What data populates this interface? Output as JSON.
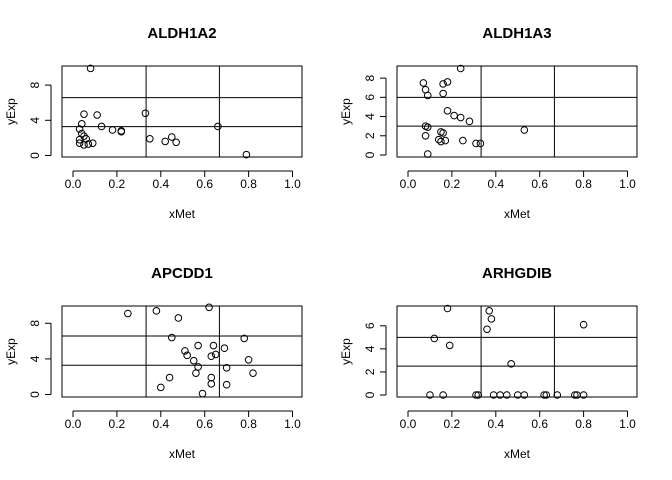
{
  "chart_data": [
    {
      "type": "scatter",
      "title": "ALDH1A2",
      "xlabel": "xMet",
      "ylabel": "yExp",
      "xlim": [
        0,
        1
      ],
      "ylim": [
        0,
        10
      ],
      "x_ticks": [
        "0.0",
        "0.2",
        "0.4",
        "0.6",
        "0.8",
        "1.0"
      ],
      "y_ticks": [
        "0",
        "4",
        "8"
      ],
      "vlines": [
        0.333,
        0.667
      ],
      "hlines": [
        3.28,
        6.57
      ],
      "points": [
        {
          "x": 0.08,
          "y": 9.9
        },
        {
          "x": 0.05,
          "y": 4.7
        },
        {
          "x": 0.11,
          "y": 4.6
        },
        {
          "x": 0.04,
          "y": 3.6
        },
        {
          "x": 0.13,
          "y": 3.3
        },
        {
          "x": 0.03,
          "y": 3.0
        },
        {
          "x": 0.04,
          "y": 2.5
        },
        {
          "x": 0.05,
          "y": 2.2
        },
        {
          "x": 0.03,
          "y": 1.8
        },
        {
          "x": 0.06,
          "y": 1.9
        },
        {
          "x": 0.03,
          "y": 1.4
        },
        {
          "x": 0.05,
          "y": 1.2
        },
        {
          "x": 0.07,
          "y": 1.3
        },
        {
          "x": 0.09,
          "y": 1.4
        },
        {
          "x": 0.18,
          "y": 2.9
        },
        {
          "x": 0.22,
          "y": 2.8
        },
        {
          "x": 0.22,
          "y": 2.7
        },
        {
          "x": 0.33,
          "y": 4.8
        },
        {
          "x": 0.35,
          "y": 1.9
        },
        {
          "x": 0.42,
          "y": 1.6
        },
        {
          "x": 0.45,
          "y": 2.1
        },
        {
          "x": 0.47,
          "y": 1.5
        },
        {
          "x": 0.66,
          "y": 3.3
        },
        {
          "x": 0.79,
          "y": 0.1
        }
      ]
    },
    {
      "type": "scatter",
      "title": "ALDH1A3",
      "xlabel": "xMet",
      "ylabel": "yExp",
      "xlim": [
        0,
        1
      ],
      "ylim": [
        0,
        9
      ],
      "x_ticks": [
        "0.0",
        "0.2",
        "0.4",
        "0.6",
        "0.8",
        "1.0"
      ],
      "y_ticks": [
        "0",
        "2",
        "4",
        "6",
        "8"
      ],
      "vlines": [
        0.333,
        0.667
      ],
      "hlines": [
        3.0,
        6.0
      ],
      "points": [
        {
          "x": 0.24,
          "y": 9.0
        },
        {
          "x": 0.07,
          "y": 7.5
        },
        {
          "x": 0.18,
          "y": 7.6
        },
        {
          "x": 0.16,
          "y": 7.4
        },
        {
          "x": 0.08,
          "y": 6.8
        },
        {
          "x": 0.09,
          "y": 6.2
        },
        {
          "x": 0.16,
          "y": 6.4
        },
        {
          "x": 0.18,
          "y": 4.6
        },
        {
          "x": 0.21,
          "y": 4.1
        },
        {
          "x": 0.24,
          "y": 3.9
        },
        {
          "x": 0.28,
          "y": 3.5
        },
        {
          "x": 0.08,
          "y": 3.0
        },
        {
          "x": 0.09,
          "y": 2.9
        },
        {
          "x": 0.15,
          "y": 2.4
        },
        {
          "x": 0.16,
          "y": 2.3
        },
        {
          "x": 0.08,
          "y": 2.0
        },
        {
          "x": 0.14,
          "y": 1.6
        },
        {
          "x": 0.17,
          "y": 1.5
        },
        {
          "x": 0.15,
          "y": 1.4
        },
        {
          "x": 0.25,
          "y": 1.5
        },
        {
          "x": 0.31,
          "y": 1.2
        },
        {
          "x": 0.33,
          "y": 1.2
        },
        {
          "x": 0.53,
          "y": 2.6
        },
        {
          "x": 0.09,
          "y": 0.1
        }
      ]
    },
    {
      "type": "scatter",
      "title": "APCDD1",
      "xlabel": "xMet",
      "ylabel": "yExp",
      "xlim": [
        0,
        1
      ],
      "ylim": [
        0,
        10
      ],
      "x_ticks": [
        "0.0",
        "0.2",
        "0.4",
        "0.6",
        "0.8",
        "1.0"
      ],
      "y_ticks": [
        "0",
        "4",
        "8"
      ],
      "vlines": [
        0.333,
        0.667
      ],
      "hlines": [
        3.28,
        6.57
      ],
      "points": [
        {
          "x": 0.25,
          "y": 9.1
        },
        {
          "x": 0.38,
          "y": 9.4
        },
        {
          "x": 0.62,
          "y": 9.8
        },
        {
          "x": 0.48,
          "y": 8.6
        },
        {
          "x": 0.45,
          "y": 6.4
        },
        {
          "x": 0.78,
          "y": 6.3
        },
        {
          "x": 0.69,
          "y": 5.2
        },
        {
          "x": 0.57,
          "y": 5.5
        },
        {
          "x": 0.64,
          "y": 5.5
        },
        {
          "x": 0.51,
          "y": 4.9
        },
        {
          "x": 0.52,
          "y": 4.4
        },
        {
          "x": 0.63,
          "y": 4.3
        },
        {
          "x": 0.65,
          "y": 4.5
        },
        {
          "x": 0.55,
          "y": 3.8
        },
        {
          "x": 0.57,
          "y": 3.1
        },
        {
          "x": 0.8,
          "y": 3.9
        },
        {
          "x": 0.7,
          "y": 3.0
        },
        {
          "x": 0.56,
          "y": 2.4
        },
        {
          "x": 0.82,
          "y": 2.4
        },
        {
          "x": 0.44,
          "y": 1.9
        },
        {
          "x": 0.63,
          "y": 1.9
        },
        {
          "x": 0.63,
          "y": 1.2
        },
        {
          "x": 0.7,
          "y": 1.1
        },
        {
          "x": 0.4,
          "y": 0.8
        },
        {
          "x": 0.59,
          "y": 0.1
        }
      ]
    },
    {
      "type": "scatter",
      "title": "ARHGDIB",
      "xlabel": "xMet",
      "ylabel": "yExp",
      "xlim": [
        0,
        1
      ],
      "ylim": [
        0,
        7.5
      ],
      "x_ticks": [
        "0.0",
        "0.2",
        "0.4",
        "0.6",
        "0.8",
        "1.0"
      ],
      "y_ticks": [
        "0",
        "2",
        "4",
        "6"
      ],
      "vlines": [
        0.333,
        0.667
      ],
      "hlines": [
        2.5,
        5.0
      ],
      "points": [
        {
          "x": 0.18,
          "y": 7.5
        },
        {
          "x": 0.37,
          "y": 7.3
        },
        {
          "x": 0.38,
          "y": 6.6
        },
        {
          "x": 0.8,
          "y": 6.1
        },
        {
          "x": 0.36,
          "y": 5.7
        },
        {
          "x": 0.12,
          "y": 4.9
        },
        {
          "x": 0.19,
          "y": 4.3
        },
        {
          "x": 0.47,
          "y": 2.7
        },
        {
          "x": 0.1,
          "y": 0.0
        },
        {
          "x": 0.16,
          "y": 0.0
        },
        {
          "x": 0.31,
          "y": 0.0
        },
        {
          "x": 0.32,
          "y": 0.0
        },
        {
          "x": 0.39,
          "y": 0.0
        },
        {
          "x": 0.42,
          "y": 0.0
        },
        {
          "x": 0.45,
          "y": 0.0
        },
        {
          "x": 0.5,
          "y": 0.0
        },
        {
          "x": 0.53,
          "y": 0.0
        },
        {
          "x": 0.62,
          "y": 0.0
        },
        {
          "x": 0.63,
          "y": 0.0
        },
        {
          "x": 0.68,
          "y": 0.0
        },
        {
          "x": 0.76,
          "y": 0.0
        },
        {
          "x": 0.77,
          "y": 0.0
        },
        {
          "x": 0.8,
          "y": 0.0
        }
      ]
    }
  ]
}
